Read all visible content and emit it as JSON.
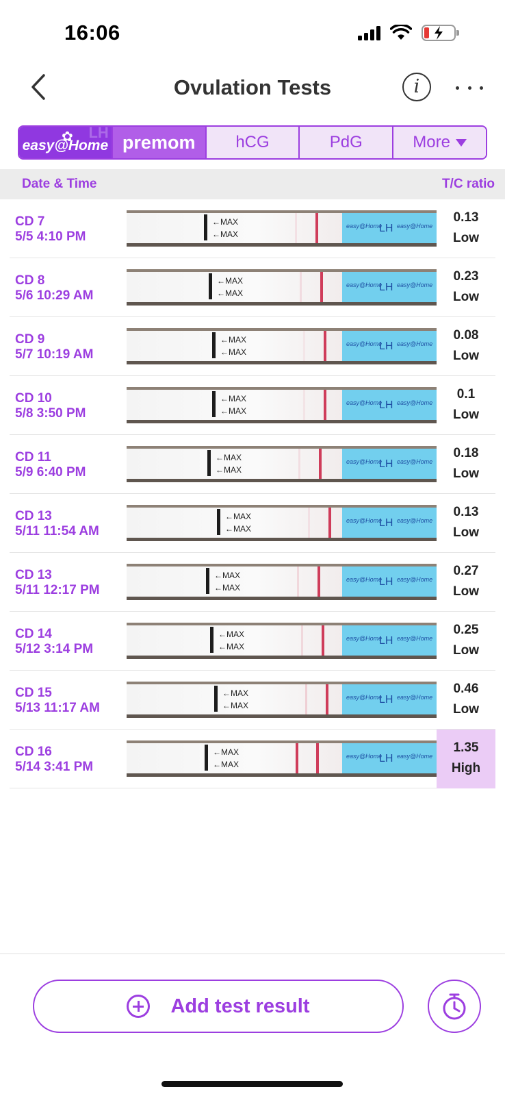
{
  "status": {
    "time": "16:06"
  },
  "nav": {
    "title": "Ovulation Tests",
    "info_glyph": "i"
  },
  "tabs": [
    {
      "label": "easy@Home"
    },
    {
      "label": "premom"
    },
    {
      "label": "hCG"
    },
    {
      "label": "PdG"
    },
    {
      "label": "More"
    }
  ],
  "table": {
    "col_date": "Date & Time",
    "col_ratio": "T/C ratio"
  },
  "rows": [
    {
      "cd": "CD 7",
      "datetime": "5/5 4:10 PM",
      "ratio": "0.13",
      "level": "Low",
      "test_line_intensity": 0.3
    },
    {
      "cd": "CD 8",
      "datetime": "5/6 10:29 AM",
      "ratio": "0.23",
      "level": "Low",
      "test_line_intensity": 0.4
    },
    {
      "cd": "CD 9",
      "datetime": "5/7 10:19 AM",
      "ratio": "0.08",
      "level": "Low",
      "test_line_intensity": 0.2
    },
    {
      "cd": "CD 10",
      "datetime": "5/8 3:50 PM",
      "ratio": "0.1",
      "level": "Low",
      "test_line_intensity": 0.25
    },
    {
      "cd": "CD 11",
      "datetime": "5/9 6:40 PM",
      "ratio": "0.18",
      "level": "Low",
      "test_line_intensity": 0.35
    },
    {
      "cd": "CD 13",
      "datetime": "5/11 11:54 AM",
      "ratio": "0.13",
      "level": "Low",
      "test_line_intensity": 0.3
    },
    {
      "cd": "CD 13",
      "datetime": "5/11 12:17 PM",
      "ratio": "0.27",
      "level": "Low",
      "test_line_intensity": 0.45
    },
    {
      "cd": "CD 14",
      "datetime": "5/12 3:14 PM",
      "ratio": "0.25",
      "level": "Low",
      "test_line_intensity": 0.45
    },
    {
      "cd": "CD 15",
      "datetime": "5/13 11:17 AM",
      "ratio": "0.46",
      "level": "Low",
      "test_line_intensity": 0.6
    },
    {
      "cd": "CD 16",
      "datetime": "5/14 3:41 PM",
      "ratio": "1.35",
      "level": "High",
      "test_line_intensity": 1.0
    }
  ],
  "strip_text": {
    "max": "←MAX",
    "lh": "LH",
    "brand": "easy@Home"
  },
  "add_button": {
    "label": "Add test result"
  },
  "colors": {
    "accent": "#9c3ee0",
    "high_bg": "#ebccf6",
    "tab_bg": "#f1e4f8"
  }
}
